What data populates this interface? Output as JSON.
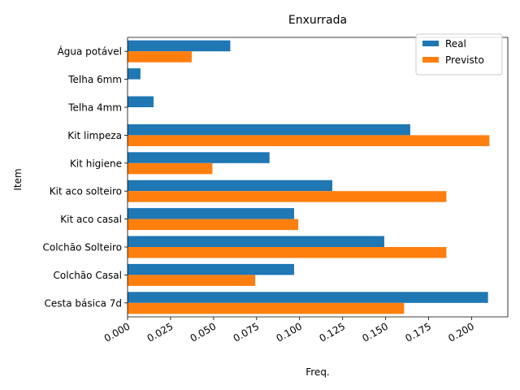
{
  "chart_data": {
    "type": "bar",
    "orientation": "horizontal",
    "title": "Enxurrada",
    "xlabel": "Freq.",
    "ylabel": "Item",
    "xlim": [
      0,
      0.221
    ],
    "xticks": [
      "0.000",
      "0.025",
      "0.050",
      "0.075",
      "0.100",
      "0.125",
      "0.150",
      "0.175",
      "0.200"
    ],
    "xtick_values": [
      0,
      0.025,
      0.05,
      0.075,
      0.1,
      0.125,
      0.15,
      0.175,
      0.2
    ],
    "categories": [
      "Cesta básica 7d",
      "Colchão Casal",
      "Colchão Solteiro",
      "Kit aco casal",
      "Kit aco solteiro",
      "Kit higiene",
      "Kit limpeza",
      "Telha 4mm",
      "Telha 6mm",
      "Água potável"
    ],
    "series": [
      {
        "name": "Real",
        "color": "#1f77b4",
        "values": [
          0.2095,
          0.0968,
          0.1492,
          0.0968,
          0.119,
          0.0825,
          0.1643,
          0.0151,
          0.0075,
          0.0597
        ]
      },
      {
        "name": "Previsto",
        "color": "#ff7f0e",
        "values": [
          0.1607,
          0.0742,
          0.1853,
          0.0992,
          0.1853,
          0.0493,
          0.2103,
          0.0,
          0.0,
          0.0373
        ]
      }
    ],
    "grid": false,
    "legend_position": "upper-right"
  }
}
